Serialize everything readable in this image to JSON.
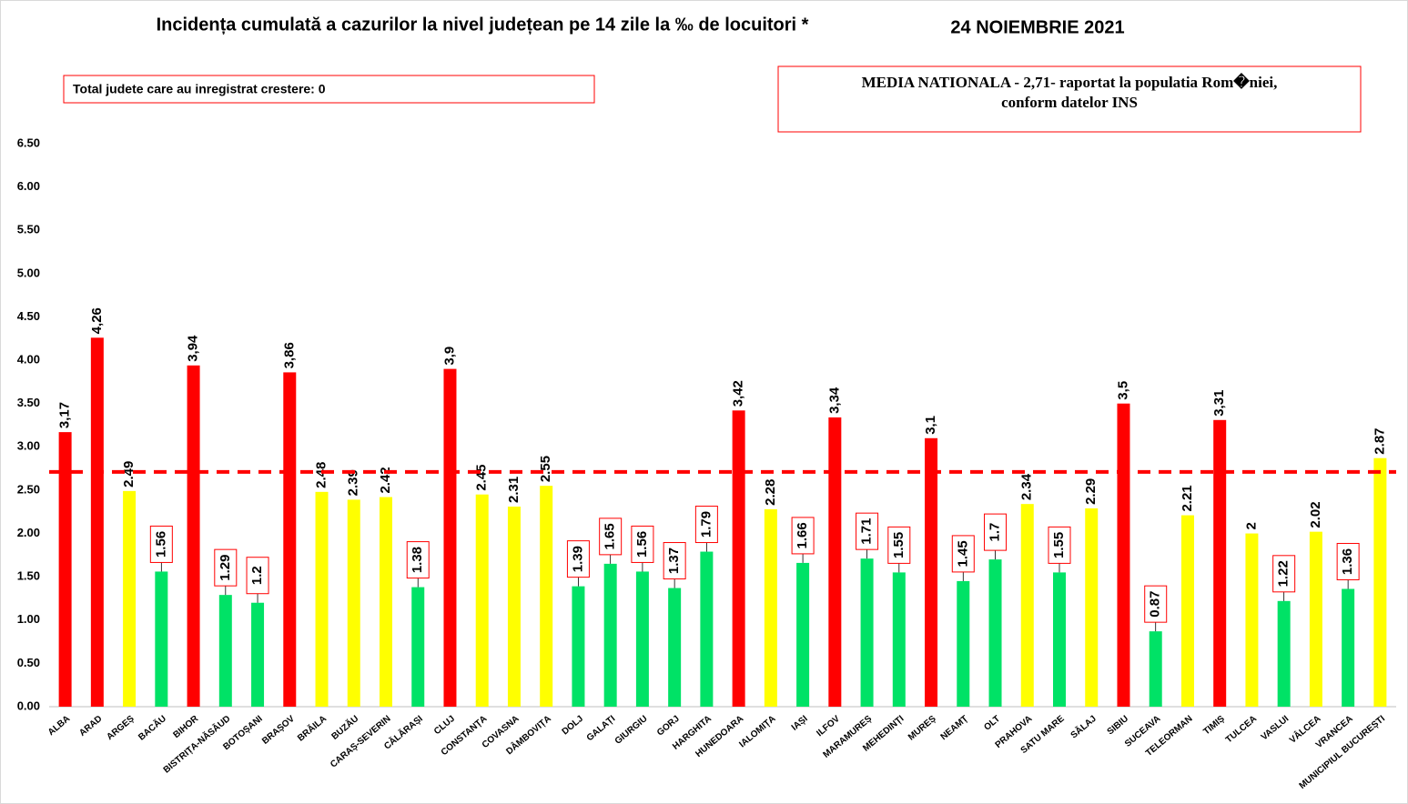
{
  "chart_data": {
    "type": "bar",
    "title": "Incidența cumulată a cazurilor la nivel județean pe 14 zile la ‰ de locuitori *",
    "subtitle": "24 NOIEMBRIE 2021",
    "annotations": [
      "Total judete care au inregistrat crestere: 0",
      "MEDIA NATIONALA - 2,71-  raportat la populatia Rom�niei,",
      "conform datelor INS"
    ],
    "categories": [
      "ALBA",
      "ARAD",
      "ARGEȘ",
      "BACĂU",
      "BIHOR",
      "BISTRIȚA-NĂSĂUD",
      "BOTOȘANI",
      "BRAȘOV",
      "BRĂILA",
      "BUZĂU",
      "CARAȘ-SEVERIN",
      "CĂLĂRAȘI",
      "CLUJ",
      "CONSTANȚA",
      "COVASNA",
      "DÂMBOVIȚA",
      "DOLJ",
      "GALAȚI",
      "GIURGIU",
      "GORJ",
      "HARGHITA",
      "HUNEDOARA",
      "IALOMIȚA",
      "IAȘI",
      "ILFOV",
      "MARAMUREȘ",
      "MEHEDINȚI",
      "MUREȘ",
      "NEAMȚ",
      "OLT",
      "PRAHOVA",
      "SATU MARE",
      "SĂLAJ",
      "SIBIU",
      "SUCEAVA",
      "TELEORMAN",
      "TIMIȘ",
      "TULCEA",
      "VASLUI",
      "VÂLCEA",
      "VRANCEA",
      "MUNICIPIUL BUCUREȘTI"
    ],
    "values": [
      3.17,
      4.26,
      2.49,
      1.56,
      3.94,
      1.29,
      1.2,
      3.86,
      2.48,
      2.39,
      2.42,
      1.38,
      3.9,
      2.45,
      2.31,
      2.55,
      1.39,
      1.65,
      1.56,
      1.37,
      1.79,
      3.42,
      2.28,
      1.66,
      3.34,
      1.71,
      1.55,
      3.1,
      1.45,
      1.7,
      2.34,
      1.55,
      2.29,
      3.5,
      0.87,
      2.21,
      3.31,
      2,
      1.22,
      2.02,
      1.36,
      2.87
    ],
    "value_labels": [
      "3,17",
      "4,26",
      "2.49",
      "1.56",
      "3,94",
      "1.29",
      "1.2",
      "3,86",
      "2.48",
      "2.39",
      "2.42",
      "1.38",
      "3,9",
      "2.45",
      "2.31",
      "2.55",
      "1.39",
      "1.65",
      "1.56",
      "1.37",
      "1.79",
      "3,42",
      "2.28",
      "1.66",
      "3,34",
      "1.71",
      "1.55",
      "3,1",
      "1.45",
      "1.7",
      "2.34",
      "1.55",
      "2.29",
      "3,5",
      "0.87",
      "2.21",
      "3,31",
      "2",
      "1.22",
      "2.02",
      "1.36",
      "2.87"
    ],
    "colors": [
      "#ff0000",
      "#ff0000",
      "#ffff00",
      "#00e266",
      "#ff0000",
      "#00e266",
      "#00e266",
      "#ff0000",
      "#ffff00",
      "#ffff00",
      "#ffff00",
      "#00e266",
      "#ff0000",
      "#ffff00",
      "#ffff00",
      "#ffff00",
      "#00e266",
      "#00e266",
      "#00e266",
      "#00e266",
      "#00e266",
      "#ff0000",
      "#ffff00",
      "#00e266",
      "#ff0000",
      "#00e266",
      "#00e266",
      "#ff0000",
      "#00e266",
      "#00e266",
      "#ffff00",
      "#00e266",
      "#ffff00",
      "#ff0000",
      "#00e266",
      "#ffff00",
      "#ff0000",
      "#ffff00",
      "#00e266",
      "#ffff00",
      "#00e266",
      "#ffff00"
    ],
    "reference_line": {
      "value": 2.71,
      "color": "#ff0000"
    },
    "ylim": [
      0,
      6.5
    ],
    "yticks": [
      {
        "value": 0,
        "label": "0.00"
      },
      {
        "value": 0.5,
        "label": "0.50"
      },
      {
        "value": 1,
        "label": "1.00"
      },
      {
        "value": 1.5,
        "label": "1.50"
      },
      {
        "value": 2,
        "label": "2.00"
      },
      {
        "value": 2.5,
        "label": "2.50"
      },
      {
        "value": 3,
        "label": "3.00"
      },
      {
        "value": 3.5,
        "label": "3.50"
      },
      {
        "value": 4,
        "label": "4.00"
      },
      {
        "value": 4.5,
        "label": "4.50"
      },
      {
        "value": 5,
        "label": "5.00"
      },
      {
        "value": 5.5,
        "label": "5.50"
      },
      {
        "value": 6,
        "label": "6.00"
      },
      {
        "value": 6.5,
        "label": "6.50"
      }
    ],
    "grid": false
  }
}
